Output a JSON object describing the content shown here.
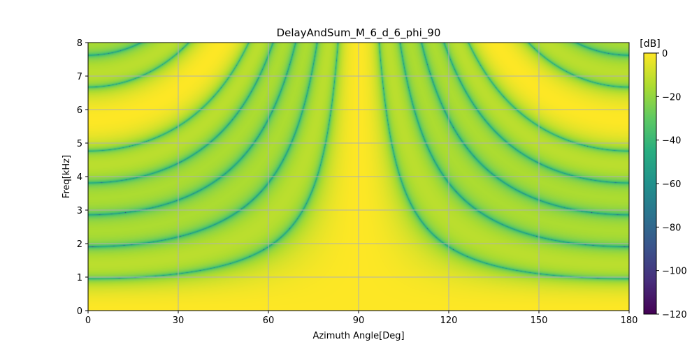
{
  "chart_data": {
    "type": "heatmap",
    "title": "DelayAndSum_M_6_d_6_phi_90",
    "xlabel": "Azimuth Angle[Deg]",
    "ylabel": "Freq[kHz]",
    "xlim": [
      0,
      180
    ],
    "ylim": [
      0,
      8
    ],
    "x_ticks": [
      0,
      30,
      60,
      90,
      120,
      150,
      180
    ],
    "y_ticks": [
      0,
      1,
      2,
      3,
      4,
      5,
      6,
      7,
      8
    ],
    "grid": true,
    "colormap": "viridis",
    "colorbar": {
      "unit_label": "[dB]",
      "range": [
        -120,
        0
      ],
      "ticks": [
        0,
        -20,
        -40,
        -60,
        -80,
        -100,
        -120
      ]
    },
    "array": {
      "method": "DelayAndSum",
      "microphones": 6,
      "spacing_cm": 6,
      "steering_angle_deg": 90
    }
  },
  "colors": {
    "grid": "#b0b0b0",
    "axis": "#000000",
    "background": "#ffffff"
  }
}
